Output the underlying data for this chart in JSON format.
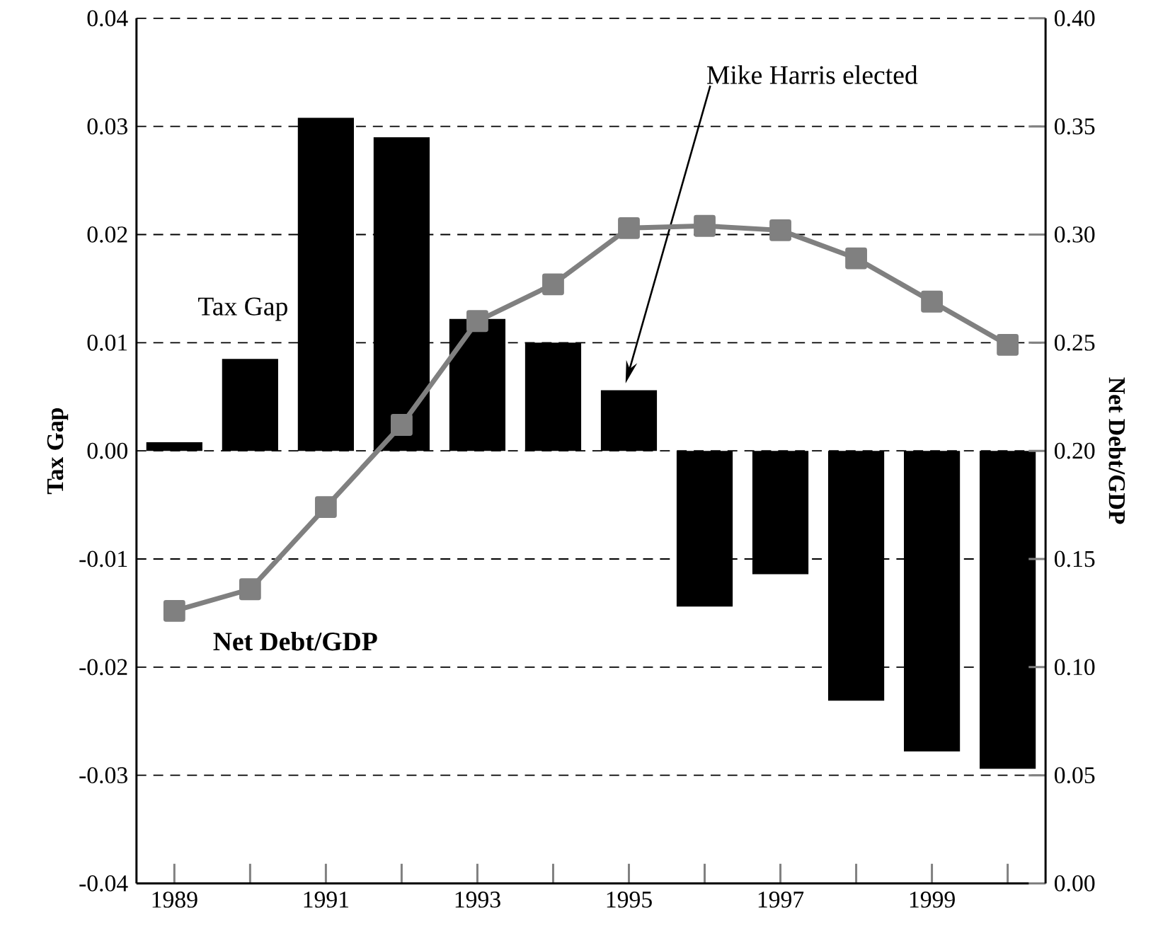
{
  "chart_data": {
    "type": "bar",
    "ylabel": "Tax Gap",
    "y2label": "Net Debt/GDP",
    "categories": [
      "1989",
      null,
      "1991",
      null,
      "1993",
      null,
      "1995",
      null,
      "1997",
      null,
      "1999",
      null
    ],
    "series": [
      {
        "name": "Tax Gap",
        "color": "#000000",
        "values": [
          0.0008,
          0.0085,
          0.0308,
          0.029,
          0.0122,
          0.01,
          0.0056,
          -0.0144,
          -0.0114,
          -0.0231,
          -0.0278,
          -0.0294
        ]
      },
      {
        "name": "Net Debt/GDP",
        "type": "line",
        "axis": "y2",
        "color": "#808080",
        "marker": "square",
        "line_style": "solid",
        "values": [
          0.126,
          0.136,
          0.174,
          0.212,
          0.26,
          0.277,
          0.303,
          0.304,
          0.302,
          0.289,
          0.269,
          0.249
        ]
      }
    ],
    "ylim": [
      -0.04,
      0.04
    ],
    "yticks": [
      {
        "value": -0.04,
        "label": "-0.04"
      },
      {
        "value": -0.03,
        "label": "-0.03"
      },
      {
        "value": -0.02,
        "label": "-0.02"
      },
      {
        "value": -0.01,
        "label": "-0.01"
      },
      {
        "value": 0,
        "label": "0.00"
      },
      {
        "value": 0.01,
        "label": "0.01"
      },
      {
        "value": 0.02,
        "label": "0.02"
      },
      {
        "value": 0.03,
        "label": "0.03"
      },
      {
        "value": 0.04,
        "label": "0.04"
      }
    ],
    "y2lim": [
      0,
      0.4
    ],
    "y2ticks": [
      {
        "value": 0,
        "label": "0.00"
      },
      {
        "value": 0.05,
        "label": "0.05"
      },
      {
        "value": 0.1,
        "label": "0.10"
      },
      {
        "value": 0.15,
        "label": "0.15"
      },
      {
        "value": 0.2,
        "label": "0.20"
      },
      {
        "value": 0.25,
        "label": "0.25"
      },
      {
        "value": 0.3,
        "label": "0.30"
      },
      {
        "value": 0.35,
        "label": "0.35"
      },
      {
        "value": 0.4,
        "label": "0.40"
      }
    ],
    "grid": "y",
    "annotations": [
      "Mike Harris elected"
    ]
  }
}
